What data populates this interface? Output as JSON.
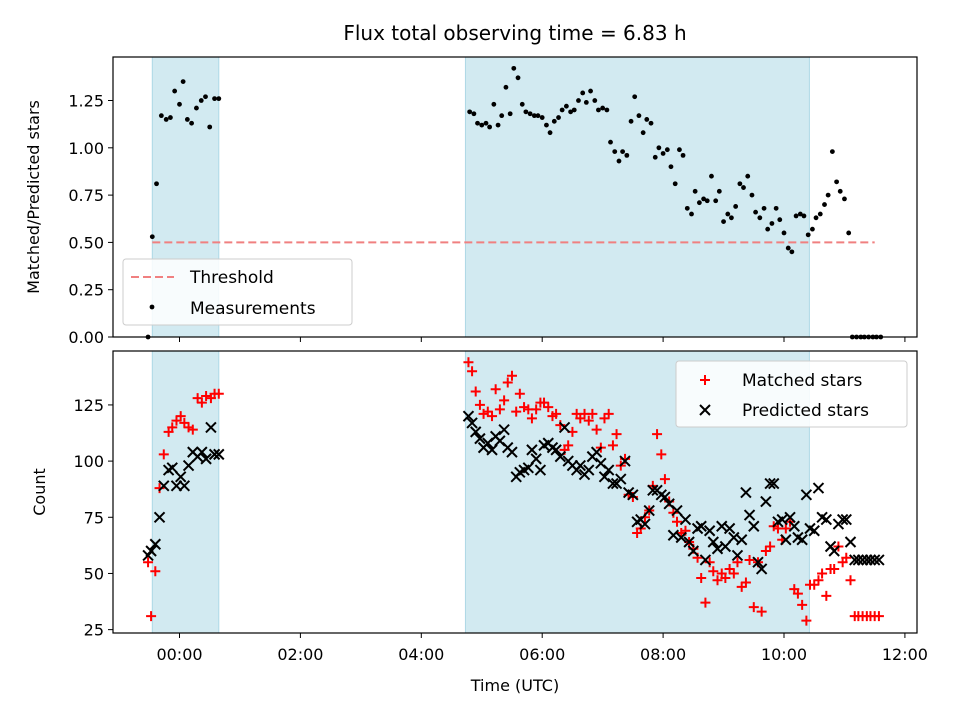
{
  "chart_data": {
    "title": "Flux total observing time = 6.83 h",
    "xlabel": "Time (UTC)",
    "x_unit": "hours UTC relative to 00:00",
    "xlim": [
      -1.1,
      12.2
    ],
    "xticks": [
      {
        "value": 0,
        "label": "00:00"
      },
      {
        "value": 2,
        "label": "02:00"
      },
      {
        "value": 4,
        "label": "04:00"
      },
      {
        "value": 6,
        "label": "06:00"
      },
      {
        "value": 8,
        "label": "08:00"
      },
      {
        "value": 10,
        "label": "10:00"
      },
      {
        "value": 12,
        "label": "12:00"
      }
    ],
    "shaded_intervals": [
      {
        "start": -0.45,
        "end": 0.65,
        "color": "#add8e6"
      },
      {
        "start": 4.73,
        "end": 10.42,
        "color": "#add8e6"
      }
    ],
    "top_panel": {
      "type": "scatter",
      "ylabel": "Matched/Predicted stars",
      "ylim": [
        0,
        1.48
      ],
      "yticks": [
        "0.00",
        "0.25",
        "0.50",
        "0.75",
        "1.00",
        "1.25"
      ],
      "threshold": {
        "name": "Threshold",
        "y": 0.5,
        "x_start": -0.45,
        "x_end": 11.5,
        "color": "#f08080"
      },
      "legend": [
        "Threshold",
        "Measurements"
      ],
      "legend_position": "lower-left",
      "series": {
        "name": "Measurements",
        "color": "#000000",
        "x": [
          -0.52,
          -0.45,
          -0.38,
          -0.3,
          -0.22,
          -0.15,
          -0.08,
          0.0,
          0.06,
          0.13,
          0.2,
          0.28,
          0.36,
          0.43,
          0.5,
          0.58,
          0.65,
          4.8,
          4.87,
          4.93,
          5.0,
          5.07,
          5.13,
          5.2,
          5.27,
          5.33,
          5.4,
          5.47,
          5.53,
          5.6,
          5.67,
          5.73,
          5.8,
          5.87,
          5.93,
          6.0,
          6.07,
          6.13,
          6.2,
          6.27,
          6.33,
          6.4,
          6.47,
          6.53,
          6.6,
          6.67,
          6.73,
          6.8,
          6.87,
          6.93,
          7.0,
          7.07,
          7.13,
          7.2,
          7.27,
          7.33,
          7.4,
          7.47,
          7.53,
          7.6,
          7.67,
          7.73,
          7.8,
          7.87,
          7.93,
          8.0,
          8.07,
          8.13,
          8.2,
          8.27,
          8.33,
          8.4,
          8.47,
          8.53,
          8.6,
          8.67,
          8.73,
          8.8,
          8.87,
          8.93,
          9.0,
          9.07,
          9.13,
          9.2,
          9.27,
          9.33,
          9.4,
          9.47,
          9.53,
          9.6,
          9.67,
          9.73,
          9.8,
          9.87,
          9.93,
          10.0,
          10.07,
          10.13,
          10.2,
          10.27,
          10.33,
          10.4,
          10.47,
          10.53,
          10.6,
          10.67,
          10.73,
          10.8,
          10.87,
          10.93,
          11.0,
          11.07,
          11.13,
          11.2,
          11.27,
          11.33,
          11.4,
          11.47,
          11.53,
          11.6
        ],
        "y": [
          0.0,
          0.53,
          0.81,
          1.17,
          1.15,
          1.16,
          1.3,
          1.23,
          1.35,
          1.15,
          1.13,
          1.21,
          1.25,
          1.27,
          1.11,
          1.26,
          1.26,
          1.19,
          1.18,
          1.13,
          1.12,
          1.13,
          1.11,
          1.23,
          1.12,
          1.17,
          1.32,
          1.18,
          1.42,
          1.37,
          1.23,
          1.19,
          1.18,
          1.17,
          1.17,
          1.16,
          1.12,
          1.08,
          1.14,
          1.16,
          1.2,
          1.22,
          1.19,
          1.2,
          1.25,
          1.29,
          1.24,
          1.3,
          1.25,
          1.2,
          1.21,
          1.2,
          1.03,
          0.98,
          0.93,
          0.98,
          0.96,
          1.14,
          1.27,
          1.17,
          1.08,
          1.15,
          1.13,
          0.95,
          1.0,
          0.97,
          0.99,
          0.9,
          0.81,
          0.99,
          0.96,
          0.68,
          0.65,
          0.77,
          0.71,
          0.73,
          0.72,
          0.85,
          0.72,
          0.77,
          0.61,
          0.65,
          0.63,
          0.69,
          0.81,
          0.79,
          0.85,
          0.75,
          0.66,
          0.63,
          0.68,
          0.57,
          0.6,
          0.68,
          0.62,
          0.55,
          0.47,
          0.45,
          0.64,
          0.65,
          0.64,
          0.54,
          0.57,
          0.63,
          0.65,
          0.7,
          0.75,
          0.98,
          0.82,
          0.77,
          0.73,
          0.55,
          0.0,
          0.0,
          0.0,
          0.0,
          0.0,
          0.0,
          0.0,
          0.0
        ]
      }
    },
    "bottom_panel": {
      "type": "scatter",
      "ylabel": "Count",
      "ylim": [
        23.5,
        149
      ],
      "yticks": [
        "25",
        "50",
        "75",
        "100",
        "125"
      ],
      "legend_position": "upper-right",
      "series": [
        {
          "name": "Matched stars",
          "marker": "+",
          "color": "#ff0000",
          "x": [
            -0.52,
            -0.47,
            -0.4,
            -0.33,
            -0.26,
            -0.18,
            -0.12,
            -0.05,
            0.02,
            0.08,
            0.15,
            0.22,
            0.3,
            0.37,
            0.44,
            0.52,
            0.58,
            0.65,
            4.78,
            4.84,
            4.9,
            4.97,
            5.03,
            5.1,
            5.17,
            5.23,
            5.3,
            5.37,
            5.43,
            5.5,
            5.57,
            5.63,
            5.7,
            5.77,
            5.83,
            5.9,
            5.97,
            6.03,
            6.1,
            6.17,
            6.23,
            6.3,
            6.37,
            6.43,
            6.5,
            6.57,
            6.63,
            6.7,
            6.77,
            6.83,
            6.9,
            6.97,
            7.03,
            7.1,
            7.17,
            7.23,
            7.3,
            7.37,
            7.43,
            7.5,
            7.57,
            7.63,
            7.7,
            7.77,
            7.83,
            7.9,
            7.97,
            8.03,
            8.1,
            8.17,
            8.23,
            8.3,
            8.37,
            8.43,
            8.5,
            8.57,
            8.63,
            8.7,
            8.77,
            8.83,
            8.9,
            8.97,
            9.03,
            9.1,
            9.17,
            9.23,
            9.3,
            9.37,
            9.43,
            9.5,
            9.57,
            9.63,
            9.7,
            9.77,
            9.83,
            9.9,
            9.97,
            10.03,
            10.1,
            10.17,
            10.23,
            10.3,
            10.37,
            10.43,
            10.5,
            10.57,
            10.63,
            10.7,
            10.77,
            10.83,
            10.9,
            10.97,
            11.03,
            11.1,
            11.17,
            11.23,
            11.3,
            11.37,
            11.43,
            11.5,
            11.57
          ],
          "y": [
            55,
            31,
            51,
            88,
            103,
            113,
            115,
            118,
            120,
            117,
            115,
            114,
            128,
            126,
            129,
            128,
            130,
            130,
            144,
            140,
            131,
            125,
            121,
            122,
            120,
            132,
            123,
            127,
            135,
            138,
            122,
            130,
            124,
            123,
            119,
            123,
            126,
            126,
            124,
            120,
            121,
            116,
            105,
            107,
            113,
            121,
            119,
            121,
            118,
            121,
            114,
            106,
            119,
            121,
            107,
            112,
            98,
            101,
            85,
            84,
            68,
            70,
            75,
            78,
            89,
            112,
            103,
            92,
            82,
            77,
            73,
            68,
            69,
            64,
            61,
            57,
            48,
            37,
            55,
            51,
            47,
            50,
            48,
            52,
            50,
            55,
            44,
            46,
            56,
            35,
            55,
            33,
            60,
            62,
            71,
            70,
            65,
            70,
            73,
            43,
            41,
            36,
            29,
            45,
            45,
            47,
            50,
            40,
            52,
            52,
            62,
            55,
            57,
            47,
            31,
            31,
            31,
            31,
            31,
            31,
            31
          ]
        },
        {
          "name": "Predicted stars",
          "marker": "x",
          "color": "#000000",
          "x": [
            -0.52,
            -0.47,
            -0.4,
            -0.33,
            -0.26,
            -0.18,
            -0.12,
            -0.05,
            0.02,
            0.08,
            0.15,
            0.22,
            0.3,
            0.37,
            0.44,
            0.52,
            0.58,
            0.65,
            4.78,
            4.84,
            4.9,
            4.97,
            5.03,
            5.1,
            5.17,
            5.23,
            5.3,
            5.37,
            5.43,
            5.5,
            5.57,
            5.63,
            5.7,
            5.77,
            5.83,
            5.9,
            5.97,
            6.03,
            6.1,
            6.17,
            6.23,
            6.3,
            6.37,
            6.43,
            6.5,
            6.57,
            6.63,
            6.7,
            6.77,
            6.83,
            6.9,
            6.97,
            7.03,
            7.1,
            7.17,
            7.23,
            7.3,
            7.37,
            7.43,
            7.5,
            7.57,
            7.63,
            7.7,
            7.77,
            7.83,
            7.9,
            7.97,
            8.03,
            8.1,
            8.17,
            8.23,
            8.3,
            8.37,
            8.43,
            8.5,
            8.57,
            8.63,
            8.7,
            8.77,
            8.83,
            8.9,
            8.97,
            9.03,
            9.1,
            9.17,
            9.23,
            9.3,
            9.37,
            9.43,
            9.5,
            9.57,
            9.63,
            9.7,
            9.77,
            9.83,
            9.9,
            9.97,
            10.03,
            10.1,
            10.17,
            10.23,
            10.3,
            10.37,
            10.43,
            10.5,
            10.57,
            10.63,
            10.7,
            10.77,
            10.83,
            10.9,
            10.97,
            11.03,
            11.1,
            11.17,
            11.23,
            11.3,
            11.37,
            11.43,
            11.5,
            11.57
          ],
          "y": [
            58,
            60,
            63,
            75,
            89,
            96,
            97,
            89,
            93,
            89,
            98,
            104,
            102,
            104,
            101,
            115,
            103,
            103,
            120,
            117,
            113,
            110,
            106,
            108,
            105,
            111,
            109,
            114,
            106,
            104,
            93,
            95,
            96,
            97,
            105,
            101,
            96,
            107,
            108,
            106,
            105,
            102,
            115,
            100,
            98,
            96,
            98,
            94,
            96,
            102,
            104,
            99,
            93,
            96,
            90,
            90,
            92,
            100,
            86,
            85,
            73,
            74,
            72,
            78,
            87,
            87,
            85,
            84,
            81,
            67,
            78,
            66,
            74,
            64,
            60,
            70,
            71,
            56,
            69,
            64,
            61,
            71,
            62,
            70,
            66,
            58,
            65,
            86,
            76,
            71,
            55,
            52,
            82,
            90,
            90,
            73,
            74,
            65,
            75,
            71,
            66,
            65,
            85,
            70,
            69,
            88,
            75,
            74,
            62,
            60,
            72,
            74,
            74,
            64,
            56,
            56,
            56,
            56,
            56,
            56,
            56
          ]
        }
      ]
    }
  }
}
